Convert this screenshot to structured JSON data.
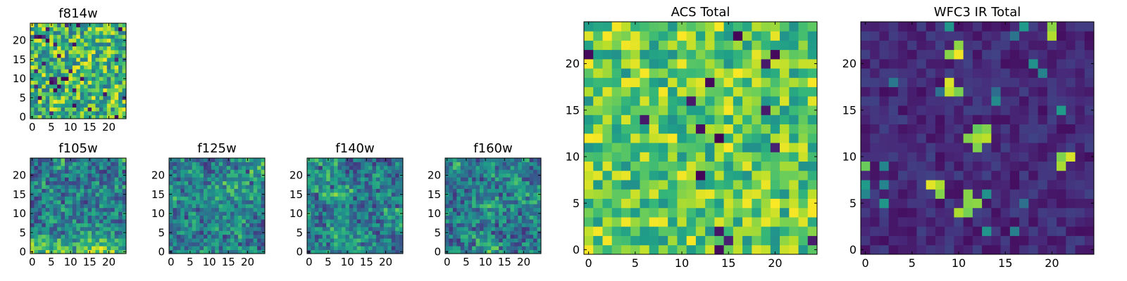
{
  "chart_data": [
    {
      "type": "heatmap",
      "title": "f814w",
      "grid_size": 25,
      "xlim": [
        -0.5,
        24.5
      ],
      "ylim": [
        -0.5,
        24.5
      ],
      "xticks": [
        0,
        5,
        10,
        15,
        20
      ],
      "yticks": [
        0,
        5,
        10,
        15,
        20
      ],
      "colormap": "viridis",
      "pattern": "noise",
      "seed": 11
    },
    {
      "type": "heatmap",
      "title": "f105w",
      "grid_size": 25,
      "xlim": [
        -0.5,
        24.5
      ],
      "ylim": [
        -0.5,
        24.5
      ],
      "xticks": [
        0,
        5,
        10,
        15,
        20
      ],
      "yticks": [
        0,
        5,
        10,
        15,
        20
      ],
      "colormap": "viridis",
      "pattern": "smooth-bright-bottom",
      "seed": 23
    },
    {
      "type": "heatmap",
      "title": "f125w",
      "grid_size": 25,
      "xlim": [
        -0.5,
        24.5
      ],
      "ylim": [
        -0.5,
        24.5
      ],
      "xticks": [
        0,
        5,
        10,
        15,
        20
      ],
      "yticks": [
        0,
        5,
        10,
        15,
        20
      ],
      "colormap": "viridis",
      "pattern": "smooth",
      "seed": 37
    },
    {
      "type": "heatmap",
      "title": "f140w",
      "grid_size": 25,
      "xlim": [
        -0.5,
        24.5
      ],
      "ylim": [
        -0.5,
        24.5
      ],
      "xticks": [
        0,
        5,
        10,
        15,
        20
      ],
      "yticks": [
        0,
        5,
        10,
        15,
        20
      ],
      "colormap": "viridis",
      "pattern": "smooth",
      "seed": 41
    },
    {
      "type": "heatmap",
      "title": "f160w",
      "grid_size": 25,
      "xlim": [
        -0.5,
        24.5
      ],
      "ylim": [
        -0.5,
        24.5
      ],
      "xticks": [
        0,
        5,
        10,
        15,
        20
      ],
      "yticks": [
        0,
        5,
        10,
        15,
        20
      ],
      "colormap": "viridis",
      "pattern": "smooth",
      "seed": 53
    },
    {
      "type": "heatmap",
      "title": "ACS Total",
      "grid_size": 25,
      "xlim": [
        -0.5,
        24.5
      ],
      "ylim": [
        -0.5,
        24.5
      ],
      "xticks": [
        0,
        5,
        10,
        15,
        20
      ],
      "yticks": [
        0,
        5,
        10,
        15,
        20
      ],
      "colormap": "viridis",
      "pattern": "acs",
      "seed": 67
    },
    {
      "type": "heatmap",
      "title": "WFC3 IR Total",
      "grid_size": 25,
      "xlim": [
        -0.5,
        24.5
      ],
      "ylim": [
        -0.5,
        24.5
      ],
      "xticks": [
        0,
        5,
        10,
        15,
        20
      ],
      "yticks": [
        0,
        5,
        10,
        15,
        20
      ],
      "colormap": "viridis",
      "pattern": "ir",
      "seed": 79,
      "bright_pixels": [
        [
          20,
          24
        ],
        [
          20,
          23
        ],
        [
          9,
          21
        ],
        [
          10,
          21
        ],
        [
          10,
          22
        ],
        [
          9,
          17
        ],
        [
          10,
          17
        ],
        [
          9,
          18
        ],
        [
          12,
          13
        ],
        [
          13,
          13
        ],
        [
          12,
          12
        ],
        [
          13,
          12
        ],
        [
          11,
          12
        ],
        [
          12,
          11
        ],
        [
          21,
          10
        ],
        [
          21,
          9
        ],
        [
          22,
          10
        ],
        [
          0,
          9
        ],
        [
          7,
          7
        ],
        [
          8,
          7
        ],
        [
          8,
          6
        ],
        [
          10,
          4
        ],
        [
          11,
          4
        ],
        [
          11,
          5
        ],
        [
          11,
          6
        ],
        [
          12,
          5
        ]
      ]
    }
  ]
}
